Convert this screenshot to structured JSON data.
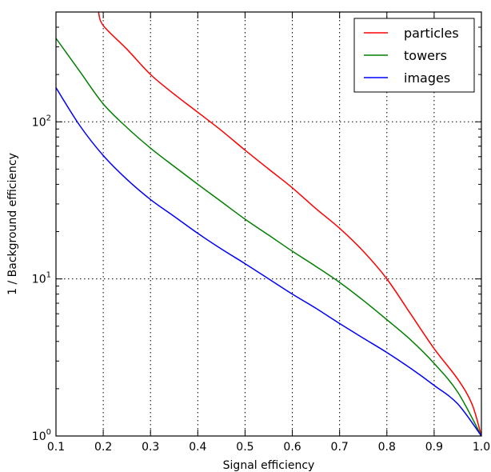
{
  "chart_data": {
    "type": "line",
    "xlabel": "Signal efficiency",
    "ylabel": "1 / Background efficiency",
    "xlim": [
      0.1,
      1.0
    ],
    "ylim": [
      1,
      500
    ],
    "yscale": "log",
    "grid": true,
    "legend_position": "top-right",
    "x_ticks": [
      0.1,
      0.2,
      0.3,
      0.4,
      0.5,
      0.6,
      0.7,
      0.8,
      0.9,
      1.0
    ],
    "x_tick_labels": [
      "0.1",
      "0.2",
      "0.3",
      "0.4",
      "0.5",
      "0.6",
      "0.7",
      "0.8",
      "0.9",
      "1.0"
    ],
    "y_major_ticks": [
      1,
      10,
      100
    ],
    "y_tick_labels": [
      {
        "base": "10",
        "exp": "0"
      },
      {
        "base": "10",
        "exp": "1"
      },
      {
        "base": "10",
        "exp": "2"
      }
    ],
    "series": [
      {
        "name": "particles",
        "color": "#ff0000",
        "x": [
          0.19,
          0.2,
          0.25,
          0.3,
          0.35,
          0.4,
          0.45,
          0.5,
          0.55,
          0.6,
          0.65,
          0.7,
          0.75,
          0.8,
          0.85,
          0.9,
          0.95,
          0.98,
          1.0
        ],
        "y": [
          500,
          410,
          290,
          200,
          150,
          115,
          88,
          66,
          50,
          38,
          28,
          21,
          15,
          10,
          6,
          3.6,
          2.3,
          1.6,
          1.0
        ]
      },
      {
        "name": "towers",
        "color": "#008000",
        "x": [
          0.1,
          0.15,
          0.2,
          0.25,
          0.3,
          0.35,
          0.4,
          0.45,
          0.5,
          0.55,
          0.6,
          0.65,
          0.7,
          0.75,
          0.8,
          0.85,
          0.9,
          0.95,
          1.0
        ],
        "y": [
          340,
          210,
          130,
          92,
          68,
          52,
          40,
          31,
          24,
          19,
          15,
          12,
          9.5,
          7.3,
          5.5,
          4.1,
          2.9,
          1.9,
          1.0
        ]
      },
      {
        "name": "images",
        "color": "#0000ff",
        "x": [
          0.1,
          0.15,
          0.2,
          0.25,
          0.3,
          0.35,
          0.4,
          0.45,
          0.5,
          0.55,
          0.6,
          0.65,
          0.7,
          0.75,
          0.8,
          0.85,
          0.9,
          0.95,
          1.0
        ],
        "y": [
          165,
          95,
          61,
          43,
          32,
          25,
          19.5,
          15.5,
          12.5,
          10,
          8,
          6.5,
          5.2,
          4.2,
          3.4,
          2.7,
          2.1,
          1.6,
          1.0
        ]
      }
    ]
  }
}
